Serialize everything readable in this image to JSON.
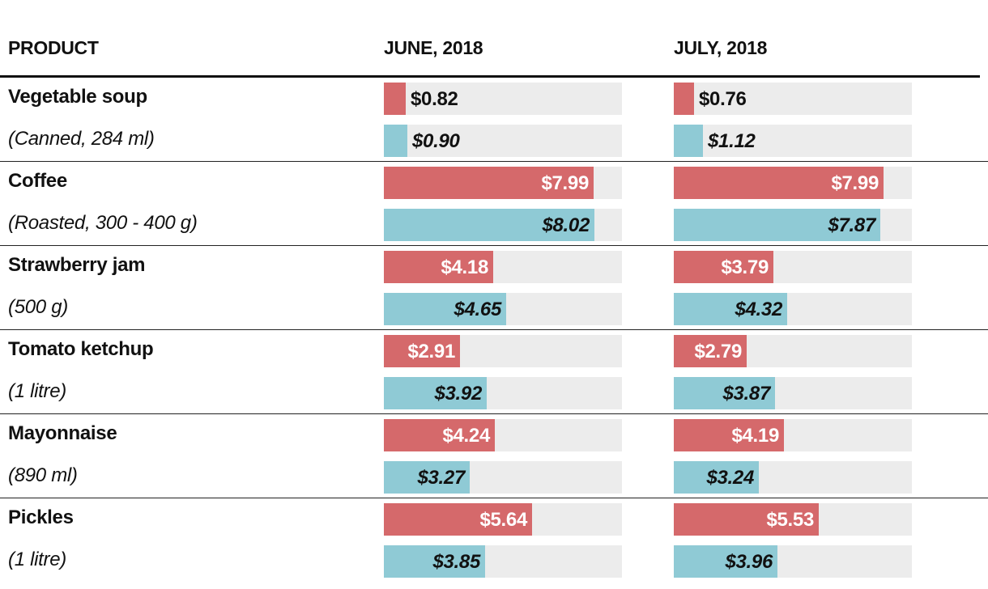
{
  "headers": {
    "product": "PRODUCT",
    "june": "JUNE, 2018",
    "july": "JULY, 2018"
  },
  "colors": {
    "red": "#d5696b",
    "blue": "#8fcad5",
    "track": "#ececec"
  },
  "chart_data": {
    "type": "bar",
    "title": "",
    "xlabel": "",
    "ylabel": "",
    "xlim": [
      0,
      9.08
    ],
    "columns": [
      "JUNE, 2018",
      "JULY, 2018"
    ],
    "products": [
      {
        "name": "Vegetable soup",
        "desc": "(Canned, 284 ml)",
        "june": {
          "red": 0.82,
          "blue": 0.9,
          "red_label": "$0.82",
          "blue_label": "$0.90"
        },
        "july": {
          "red": 0.76,
          "blue": 1.12,
          "red_label": "$0.76",
          "blue_label": "$1.12"
        }
      },
      {
        "name": "Coffee",
        "desc": "(Roasted, 300 - 400 g)",
        "june": {
          "red": 7.99,
          "blue": 8.02,
          "red_label": "$7.99",
          "blue_label": "$8.02"
        },
        "july": {
          "red": 7.99,
          "blue": 7.87,
          "red_label": "$7.99",
          "blue_label": "$7.87"
        }
      },
      {
        "name": "Strawberry jam",
        "desc": "(500 g)",
        "june": {
          "red": 4.18,
          "blue": 4.65,
          "red_label": "$4.18",
          "blue_label": "$4.65"
        },
        "july": {
          "red": 3.79,
          "blue": 4.32,
          "red_label": "$3.79",
          "blue_label": "$4.32"
        }
      },
      {
        "name": "Tomato ketchup",
        "desc": "(1 litre)",
        "june": {
          "red": 2.91,
          "blue": 3.92,
          "red_label": "$2.91",
          "blue_label": "$3.92"
        },
        "july": {
          "red": 2.79,
          "blue": 3.87,
          "red_label": "$2.79",
          "blue_label": "$3.87"
        }
      },
      {
        "name": "Mayonnaise",
        "desc": "(890 ml)",
        "june": {
          "red": 4.24,
          "blue": 3.27,
          "red_label": "$4.24",
          "blue_label": "$3.27"
        },
        "july": {
          "red": 4.19,
          "blue": 3.24,
          "red_label": "$4.19",
          "blue_label": "$3.24"
        }
      },
      {
        "name": "Pickles",
        "desc": "(1 litre)",
        "june": {
          "red": 5.64,
          "blue": 3.85,
          "red_label": "$5.64",
          "blue_label": "$3.85"
        },
        "july": {
          "red": 5.53,
          "blue": 3.96,
          "red_label": "$5.53",
          "blue_label": "$3.96"
        }
      }
    ]
  }
}
